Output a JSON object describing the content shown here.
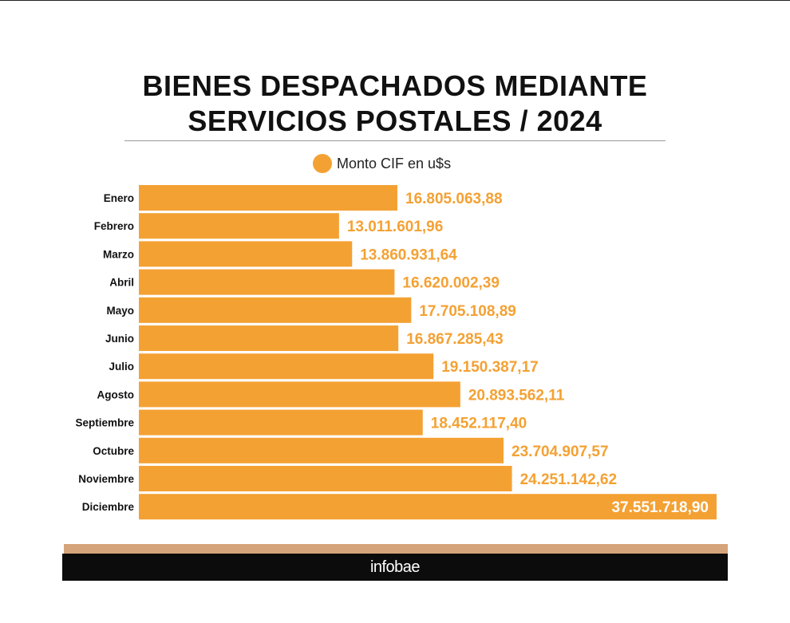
{
  "title_lines": [
    "BIENES DESPACHADOS MEDIANTE",
    "SERVICIOS POSTALES / 2024"
  ],
  "legend": {
    "label": "Monto CIF en u$s"
  },
  "brand": "infobae",
  "colors": {
    "bar": "#f4a133",
    "value_text": "#f4a133",
    "value_text_inside": "#ffffff",
    "category_text": "#111111"
  },
  "chart_data": {
    "type": "bar",
    "orientation": "horizontal",
    "title": "BIENES DESPACHADOS MEDIANTE SERVICIOS POSTALES / 2024",
    "series_name": "Monto CIF en u$s",
    "xlim": [
      0,
      37551718.9
    ],
    "categories": [
      "Enero",
      "Febrero",
      "Marzo",
      "Abril",
      "Mayo",
      "Junio",
      "Julio",
      "Agosto",
      "Septiembre",
      "Octubre",
      "Noviembre",
      "Diciembre"
    ],
    "values": [
      16805063.88,
      13011601.96,
      13860931.64,
      16620002.39,
      17705108.89,
      16867285.43,
      19150387.17,
      20893562.11,
      18452117.4,
      23704907.57,
      24251142.62,
      37551718.9
    ],
    "labels": [
      "16.805.063,88",
      "13.011.601,96",
      "13.860.931,64",
      "16.620.002,39",
      "17.705.108,89",
      "16.867.285,43",
      "19.150.387,17",
      "20.893.562,11",
      "18.452.117,40",
      "23.704.907,57",
      "24.251.142,62",
      "37.551.718,90"
    ]
  }
}
